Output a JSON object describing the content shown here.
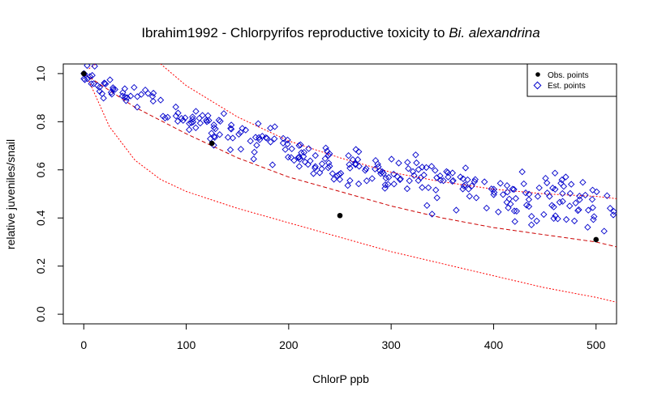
{
  "chart_data": {
    "type": "scatter",
    "title_main": "Ibrahim1992 - Chlorpyrifos reproductive toxicity to ",
    "title_italic": "Bi. alexandrina",
    "xlabel": "ChlorP ppb",
    "ylabel": "relative juveniles/snail",
    "xlim": [
      -20,
      520
    ],
    "ylim": [
      -0.04,
      1.04
    ],
    "x_ticks": [
      0,
      100,
      200,
      300,
      400,
      500
    ],
    "y_ticks": [
      0.0,
      0.2,
      0.4,
      0.6,
      0.8,
      1.0
    ],
    "x_tick_labels": [
      "0",
      "100",
      "200",
      "300",
      "400",
      "500"
    ],
    "y_tick_labels": [
      "0.0",
      "0.2",
      "0.4",
      "0.6",
      "0.8",
      "1.0"
    ],
    "legend": {
      "placement": "top-right",
      "entries": [
        "Obs. points",
        "Est. points"
      ]
    },
    "colors": {
      "observed": "#000000",
      "estimated": "#0000cc",
      "fit_line": "#cc0000",
      "bands": "#ff0000"
    },
    "observed": {
      "name": "Obs. points",
      "x": [
        0,
        125,
        250,
        500
      ],
      "y": [
        1.0,
        0.71,
        0.41,
        0.31
      ]
    },
    "estimated": {
      "name": "Est. points",
      "decay_rate": 0.0029,
      "base": 0.27,
      "noise": 0.035,
      "x_max": 520,
      "count": 310,
      "seed": 7
    },
    "fit_curve": {
      "x": [
        0,
        50,
        100,
        150,
        200,
        250,
        300,
        350,
        400,
        450,
        500,
        520
      ],
      "y": [
        1.0,
        0.86,
        0.75,
        0.65,
        0.57,
        0.51,
        0.45,
        0.4,
        0.36,
        0.33,
        0.3,
        0.28
      ]
    },
    "upper_band": {
      "x": [
        5,
        25,
        50,
        75,
        100,
        150,
        200,
        250,
        300,
        350,
        400,
        450,
        500,
        520
      ],
      "y": [
        1.02,
        1.08,
        1.12,
        1.04,
        0.95,
        0.82,
        0.72,
        0.65,
        0.59,
        0.55,
        0.52,
        0.5,
        0.49,
        0.48
      ]
    },
    "lower_band": {
      "x": [
        5,
        25,
        50,
        75,
        100,
        150,
        200,
        250,
        300,
        350,
        400,
        450,
        500,
        520
      ],
      "y": [
        0.97,
        0.78,
        0.64,
        0.56,
        0.51,
        0.44,
        0.38,
        0.32,
        0.26,
        0.21,
        0.16,
        0.11,
        0.07,
        0.05
      ]
    }
  }
}
